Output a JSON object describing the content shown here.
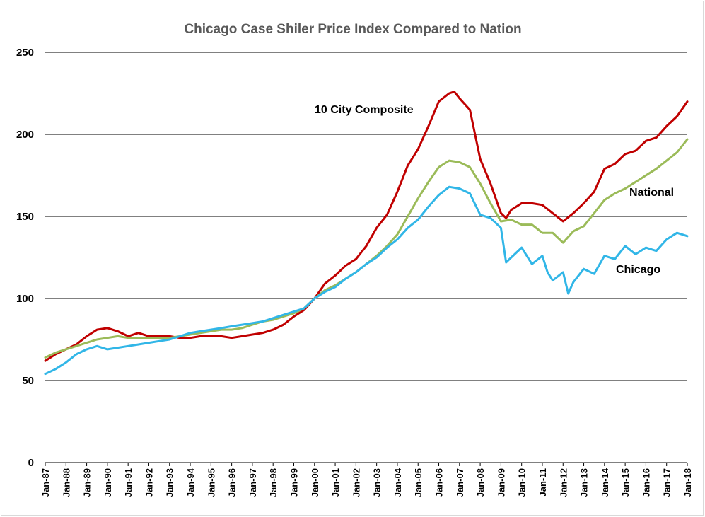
{
  "chart_data": {
    "type": "line",
    "title": "Chicago Case Shiler Price Index Compared to Nation",
    "xlabel": "",
    "ylabel": "",
    "ylim": [
      0,
      250
    ],
    "yticks": [
      "0",
      "50",
      "100",
      "150",
      "200",
      "250"
    ],
    "x_tick_labels": [
      "Jan-87",
      "Jan-88",
      "Jan-89",
      "Jan-90",
      "Jan-91",
      "Jan-92",
      "Jan-93",
      "Jan-94",
      "Jan-95",
      "Jan-96",
      "Jan-97",
      "Jan-98",
      "Jan-99",
      "Jan-00",
      "Jan-01",
      "Jan-02",
      "Jan-03",
      "Jan-04",
      "Jan-05",
      "Jan-06",
      "Jan-07",
      "Jan-08",
      "Jan-09",
      "Jan-10",
      "Jan-11",
      "Jan-12",
      "Jan-13",
      "Jan-14",
      "Jan-15",
      "Jan-16",
      "Jan-17",
      "Jan-18"
    ],
    "grid": true,
    "legend": "none",
    "series": [
      {
        "name": "10 City Composite",
        "color": "#c00000",
        "x": [
          1987.0,
          1987.5,
          1988.0,
          1988.5,
          1989.0,
          1989.5,
          1990.0,
          1990.5,
          1991.0,
          1991.5,
          1992.0,
          1992.5,
          1993.0,
          1993.5,
          1994.0,
          1994.5,
          1995.0,
          1995.5,
          1996.0,
          1996.5,
          1997.0,
          1997.5,
          1998.0,
          1998.5,
          1999.0,
          1999.5,
          2000.0,
          2000.5,
          2001.0,
          2001.5,
          2002.0,
          2002.5,
          2003.0,
          2003.5,
          2004.0,
          2004.5,
          2005.0,
          2005.5,
          2006.0,
          2006.5,
          2006.75,
          2007.0,
          2007.5,
          2008.0,
          2008.5,
          2009.0,
          2009.25,
          2009.5,
          2010.0,
          2010.5,
          2011.0,
          2011.5,
          2012.0,
          2012.5,
          2013.0,
          2013.5,
          2014.0,
          2014.5,
          2015.0,
          2015.5,
          2016.0,
          2016.5,
          2017.0,
          2017.5,
          2018.0
        ],
        "values": [
          62,
          66,
          69,
          72,
          77,
          81,
          82,
          80,
          77,
          79,
          77,
          77,
          77,
          76,
          76,
          77,
          77,
          77,
          76,
          77,
          78,
          79,
          81,
          84,
          89,
          93,
          100,
          109,
          114,
          120,
          124,
          132,
          143,
          151,
          165,
          181,
          191,
          205,
          220,
          225,
          226,
          222,
          215,
          185,
          170,
          152,
          149,
          154,
          158,
          158,
          157,
          152,
          147,
          152,
          158,
          165,
          179,
          182,
          188,
          190,
          196,
          198,
          205,
          211,
          220
        ]
      },
      {
        "name": "National",
        "color": "#9bbb59",
        "x": [
          1987.0,
          1987.5,
          1988.0,
          1988.5,
          1989.0,
          1989.5,
          1990.0,
          1990.5,
          1991.0,
          1991.5,
          1992.0,
          1992.5,
          1993.0,
          1993.5,
          1994.0,
          1994.5,
          1995.0,
          1995.5,
          1996.0,
          1996.5,
          1997.0,
          1997.5,
          1998.0,
          1998.5,
          1999.0,
          1999.5,
          2000.0,
          2000.5,
          2001.0,
          2001.5,
          2002.0,
          2002.5,
          2003.0,
          2003.5,
          2004.0,
          2004.5,
          2005.0,
          2005.5,
          2006.0,
          2006.5,
          2007.0,
          2007.5,
          2008.0,
          2008.5,
          2009.0,
          2009.5,
          2010.0,
          2010.5,
          2011.0,
          2011.5,
          2012.0,
          2012.5,
          2013.0,
          2013.5,
          2014.0,
          2014.5,
          2015.0,
          2015.5,
          2016.0,
          2016.5,
          2017.0,
          2017.5,
          2018.0
        ],
        "values": [
          64,
          67,
          69,
          71,
          73,
          75,
          76,
          77,
          76,
          76,
          76,
          76,
          76,
          77,
          78,
          79,
          80,
          81,
          81,
          82,
          84,
          86,
          87,
          89,
          91,
          94,
          100,
          105,
          108,
          112,
          116,
          121,
          126,
          132,
          139,
          150,
          161,
          171,
          180,
          184,
          183,
          180,
          170,
          158,
          147,
          148,
          145,
          145,
          140,
          140,
          134,
          141,
          144,
          152,
          160,
          164,
          167,
          171,
          175,
          179,
          184,
          189,
          197
        ]
      },
      {
        "name": "Chicago",
        "color": "#31b6e7",
        "x": [
          1987.0,
          1987.5,
          1988.0,
          1988.5,
          1989.0,
          1989.5,
          1990.0,
          1990.5,
          1991.0,
          1991.5,
          1992.0,
          1992.5,
          1993.0,
          1993.5,
          1994.0,
          1994.5,
          1995.0,
          1995.5,
          1996.0,
          1996.5,
          1997.0,
          1997.5,
          1998.0,
          1998.5,
          1999.0,
          1999.5,
          2000.0,
          2000.5,
          2001.0,
          2001.5,
          2002.0,
          2002.5,
          2003.0,
          2003.5,
          2004.0,
          2004.5,
          2005.0,
          2005.5,
          2006.0,
          2006.5,
          2007.0,
          2007.5,
          2008.0,
          2008.5,
          2009.0,
          2009.25,
          2009.5,
          2010.0,
          2010.5,
          2011.0,
          2011.25,
          2011.5,
          2012.0,
          2012.25,
          2012.5,
          2013.0,
          2013.5,
          2014.0,
          2014.5,
          2015.0,
          2015.5,
          2016.0,
          2016.5,
          2017.0,
          2017.5,
          2018.0
        ],
        "values": [
          54,
          57,
          61,
          66,
          69,
          71,
          69,
          70,
          71,
          72,
          73,
          74,
          75,
          77,
          79,
          80,
          81,
          82,
          83,
          84,
          85,
          86,
          88,
          90,
          92,
          94,
          100,
          104,
          107,
          112,
          116,
          121,
          125,
          131,
          136,
          143,
          148,
          156,
          163,
          168,
          167,
          164,
          151,
          149,
          143,
          122,
          125,
          131,
          121,
          126,
          116,
          111,
          116,
          103,
          110,
          118,
          115,
          126,
          124,
          132,
          127,
          131,
          129,
          136,
          140,
          138
        ]
      }
    ],
    "annotations": [
      {
        "text": "10 City Composite",
        "series": "10 City Composite"
      },
      {
        "text": "National",
        "series": "National"
      },
      {
        "text": "Chicago",
        "series": "Chicago"
      }
    ]
  }
}
